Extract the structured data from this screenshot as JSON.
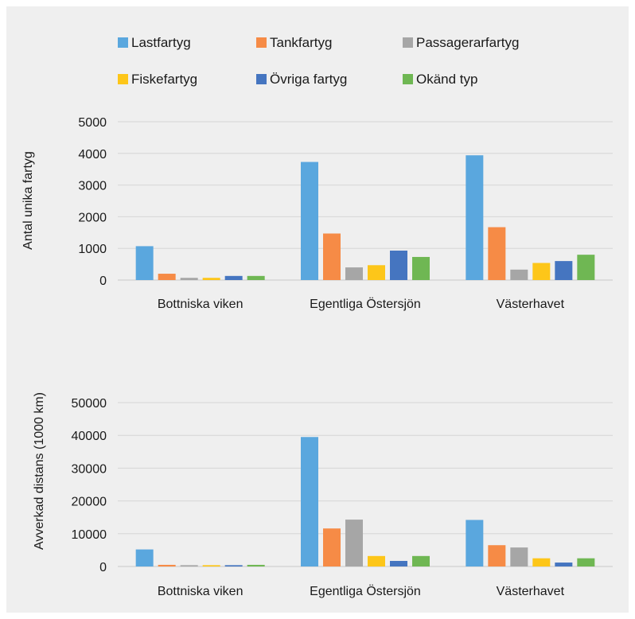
{
  "legend": [
    {
      "label": "Lastfartyg",
      "color": "#5aa7de"
    },
    {
      "label": "Tankfartyg",
      "color": "#f68b46"
    },
    {
      "label": "Passagerarfartyg",
      "color": "#a6a6a6"
    },
    {
      "label": "Fiskefartyg",
      "color": "#fdc619"
    },
    {
      "label": "Övriga fartyg",
      "color": "#4575c0"
    },
    {
      "label": "Okänd typ",
      "color": "#6fb753"
    }
  ],
  "chart_data": [
    {
      "type": "bar",
      "ylabel": "Antal unika fartyg",
      "ylim": [
        0,
        5000
      ],
      "yticks": [
        0,
        1000,
        2000,
        3000,
        4000,
        5000
      ],
      "categories": [
        "Bottniska viken",
        "Egentliga Östersjön",
        "Västerhavet"
      ],
      "series": [
        {
          "name": "Lastfartyg",
          "values": [
            1070,
            3730,
            3940
          ]
        },
        {
          "name": "Tankfartyg",
          "values": [
            200,
            1470,
            1670
          ]
        },
        {
          "name": "Passagerarfartyg",
          "values": [
            70,
            400,
            330
          ]
        },
        {
          "name": "Fiskefartyg",
          "values": [
            70,
            470,
            540
          ]
        },
        {
          "name": "Övriga fartyg",
          "values": [
            130,
            930,
            600
          ]
        },
        {
          "name": "Okänd typ",
          "values": [
            130,
            730,
            800
          ]
        }
      ],
      "grid": true
    },
    {
      "type": "bar",
      "ylabel": "Avverkad distans (1000 km)",
      "ylim": [
        0,
        50000
      ],
      "yticks": [
        0,
        10000,
        20000,
        30000,
        40000,
        50000
      ],
      "categories": [
        "Bottniska viken",
        "Egentliga Östersjön",
        "Västerhavet"
      ],
      "series": [
        {
          "name": "Lastfartyg",
          "values": [
            5200,
            39500,
            14200
          ]
        },
        {
          "name": "Tankfartyg",
          "values": [
            500,
            11600,
            6500
          ]
        },
        {
          "name": "Passagerarfartyg",
          "values": [
            400,
            14300,
            5800
          ]
        },
        {
          "name": "Fiskefartyg",
          "values": [
            400,
            3200,
            2500
          ]
        },
        {
          "name": "Övriga fartyg",
          "values": [
            400,
            1700,
            1200
          ]
        },
        {
          "name": "Okänd typ",
          "values": [
            500,
            3200,
            2500
          ]
        }
      ],
      "grid": true
    }
  ]
}
